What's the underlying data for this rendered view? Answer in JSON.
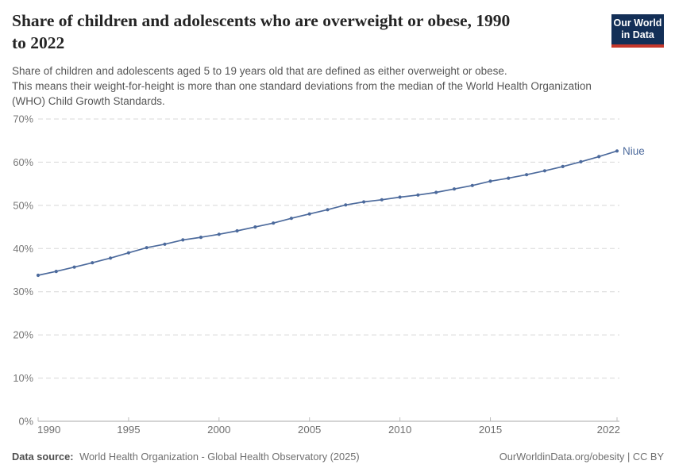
{
  "header": {
    "title_line1": "Share of children and adolescents who are overweight or obese, 1990",
    "title_line2": "to 2022",
    "subtitle_lines": [
      "Share of children and adolescents aged 5 to 19 years old that are defined as either overweight or obese.",
      "This means their weight-for-height is more than one standard deviations from the median of the World Health Organization",
      "(WHO) Child Growth Standards."
    ],
    "logo": {
      "line1": "Our World",
      "line2": "in Data",
      "bg": "#132F57",
      "stripe": "#C5372B"
    }
  },
  "footer": {
    "datasource_label": "Data source:",
    "datasource_text": "World Health Organization - Global Health Observatory (2025)",
    "credit": "OurWorldinData.org/obesity | CC BY"
  },
  "chart_data": {
    "type": "line",
    "title": "Share of children and adolescents who are overweight or obese, 1990 to 2022",
    "xlabel": "",
    "ylabel": "",
    "grid": "dashed-horizontal",
    "legend_position": "end-of-line-label",
    "xlim": [
      1990,
      2022
    ],
    "ylim": [
      0,
      70
    ],
    "yticks": [
      0,
      10,
      20,
      30,
      40,
      50,
      60,
      70
    ],
    "ytick_format": "{v}%",
    "xticks": [
      1990,
      1995,
      2000,
      2005,
      2010,
      2015,
      2022
    ],
    "x": [
      1990,
      1991,
      1992,
      1993,
      1994,
      1995,
      1996,
      1997,
      1998,
      1999,
      2000,
      2001,
      2002,
      2003,
      2004,
      2005,
      2006,
      2007,
      2008,
      2009,
      2010,
      2011,
      2012,
      2013,
      2014,
      2015,
      2016,
      2017,
      2018,
      2019,
      2020,
      2021,
      2022
    ],
    "series": [
      {
        "name": "Niue",
        "color": "#4C6A9C",
        "values": [
          33.8,
          34.7,
          35.7,
          36.7,
          37.8,
          39.0,
          40.2,
          41.0,
          42.0,
          42.6,
          43.3,
          44.1,
          45.0,
          45.9,
          47.0,
          48.0,
          49.0,
          50.1,
          50.8,
          51.3,
          51.9,
          52.4,
          53.0,
          53.8,
          54.6,
          55.6,
          56.3,
          57.1,
          58.0,
          59.0,
          60.1,
          61.3,
          62.6
        ]
      }
    ]
  }
}
